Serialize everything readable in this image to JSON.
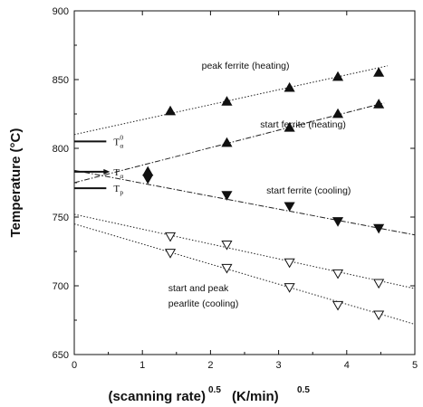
{
  "chart_data": {
    "type": "scatter",
    "xlim": [
      0,
      5
    ],
    "ylim": [
      650,
      900
    ],
    "xticks": [
      "0",
      "1",
      "2",
      "3",
      "4",
      "5"
    ],
    "yticks": [
      "650",
      "700",
      "750",
      "800",
      "850",
      "900"
    ],
    "xlabel": {
      "main": "(scanning rate)",
      "sup": "0.5",
      "unit": "(K/min)",
      "unit_sup": "0.5"
    },
    "ylabel": "Temperature (°C)",
    "grid": false,
    "series": [
      {
        "name": "peak ferrite (heating)",
        "marker": "triangle-up-filled",
        "x": [
          1.41,
          2.24,
          3.16,
          3.87,
          4.47
        ],
        "y": [
          827,
          834,
          844,
          852,
          855
        ],
        "fit": {
          "x": [
            0.0,
            4.6
          ],
          "y": [
            810,
            860
          ],
          "dash": "dotted"
        }
      },
      {
        "name": "start ferrite (heating)",
        "marker": "triangle-up-filled",
        "x": [
          2.24,
          3.16,
          3.87,
          4.47
        ],
        "y": [
          804,
          815,
          825,
          832
        ],
        "fit": {
          "x": [
            0.0,
            4.55
          ],
          "y": [
            775,
            833
          ],
          "dash": "dashdot"
        }
      },
      {
        "name": "start ferrite (cooling)",
        "marker": "triangle-down-filled",
        "x": [
          2.24,
          3.16,
          3.87,
          4.47
        ],
        "y": [
          766,
          758,
          747,
          742
        ],
        "fit": {
          "x": [
            0.0,
            5.0
          ],
          "y": [
            784,
            737
          ],
          "dash": "dashdot"
        }
      },
      {
        "name": "start pearlite (cooling)",
        "marker": "triangle-down-open",
        "x": [
          1.41,
          2.24,
          3.16,
          3.87,
          4.47
        ],
        "y": [
          736,
          730,
          717,
          709,
          702
        ],
        "fit": {
          "x": [
            0.0,
            5.0
          ],
          "y": [
            752,
            698
          ],
          "dash": "dotted"
        }
      },
      {
        "name": "peak pearlite (cooling)",
        "marker": "triangle-down-open",
        "x": [
          1.41,
          2.24,
          3.16,
          3.87,
          4.47
        ],
        "y": [
          724,
          713,
          699,
          686,
          679
        ],
        "fit": {
          "x": [
            0.0,
            5.0
          ],
          "y": [
            745,
            672
          ],
          "dash": "dotted"
        }
      }
    ],
    "extra_points": [
      {
        "x": 1.08,
        "y": 783,
        "marker": "triangle-up-filled"
      },
      {
        "x": 1.08,
        "y": 778,
        "marker": "triangle-down-filled"
      }
    ],
    "annotations": [
      {
        "text": "peak ferrite (heating)",
        "x": 1.87,
        "y": 858
      },
      {
        "text": "start ferrite (heating)",
        "x": 2.73,
        "y": 815
      },
      {
        "text": "start ferrite (cooling)",
        "x": 2.82,
        "y": 767
      },
      {
        "text": "start and peak",
        "x": 1.38,
        "y": 696
      },
      {
        "text": "pearlite (cooling)",
        "x": 1.38,
        "y": 685
      }
    ],
    "reference_lines": [
      {
        "name": "T_alpha_0",
        "label": "T",
        "sub": "α",
        "sup": "0",
        "y": 805,
        "x_end": 0.47,
        "arrow": false
      },
      {
        "name": "T_alpha",
        "label": "T",
        "sub": "α",
        "sup": "",
        "y": 783,
        "x_end": 0.47,
        "arrow": true
      },
      {
        "name": "T_p",
        "label": "T",
        "sub": "p",
        "sup": "",
        "y": 771,
        "x_end": 0.47,
        "arrow": false
      }
    ]
  }
}
